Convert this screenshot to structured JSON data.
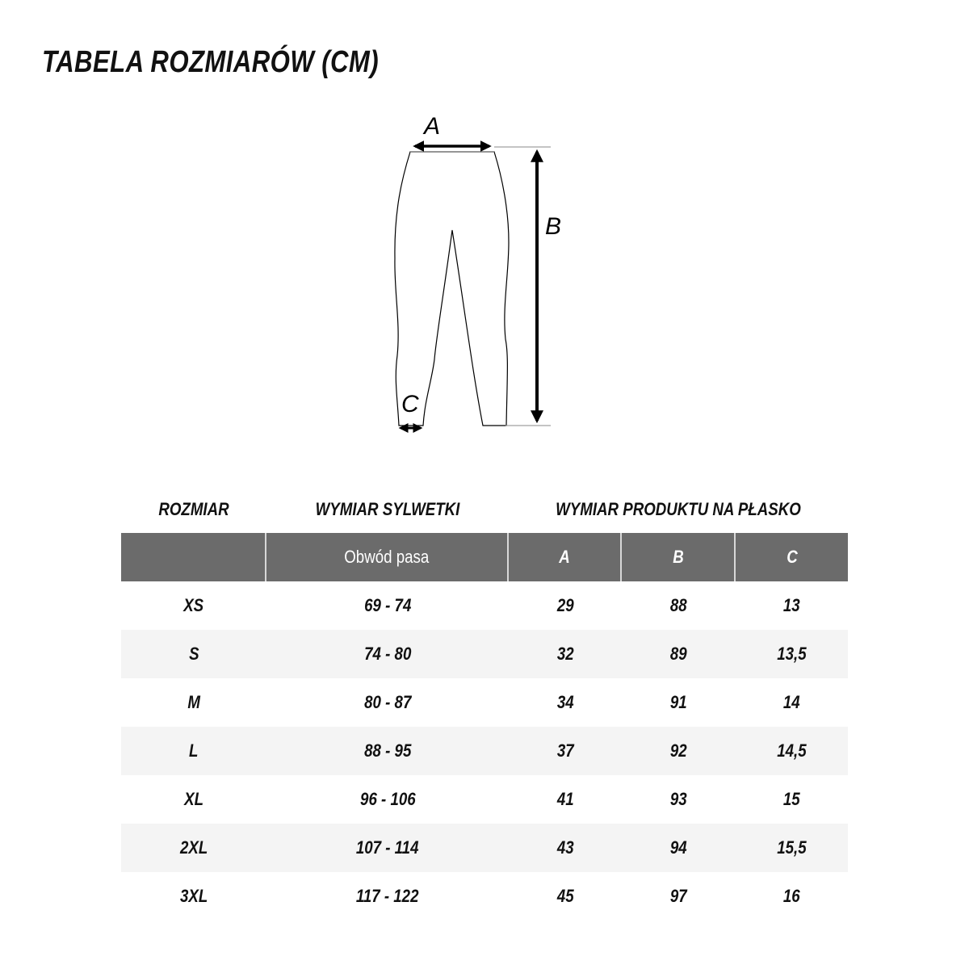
{
  "title": "TABELA ROZMIARÓW (CM)",
  "diagram": {
    "label_a": "A",
    "label_b": "B",
    "label_c": "C"
  },
  "table": {
    "group_headers": [
      "ROZMIAR",
      "WYMIAR SYLWETKI",
      "WYMIAR PRODUKTU NA PŁASKO"
    ],
    "columns": [
      "",
      "Obwód pasa",
      "A",
      "B",
      "C"
    ],
    "rows": [
      [
        "XS",
        "69 - 74",
        "29",
        "88",
        "13"
      ],
      [
        "S",
        "74 - 80",
        "32",
        "89",
        "13,5"
      ],
      [
        "M",
        "80 - 87",
        "34",
        "91",
        "14"
      ],
      [
        "L",
        "88 - 95",
        "37",
        "92",
        "14,5"
      ],
      [
        "XL",
        "96 - 106",
        "41",
        "93",
        "15"
      ],
      [
        "2XL",
        "107 - 114",
        "43",
        "94",
        "15,5"
      ],
      [
        "3XL",
        "117 - 122",
        "45",
        "97",
        "16"
      ]
    ]
  }
}
